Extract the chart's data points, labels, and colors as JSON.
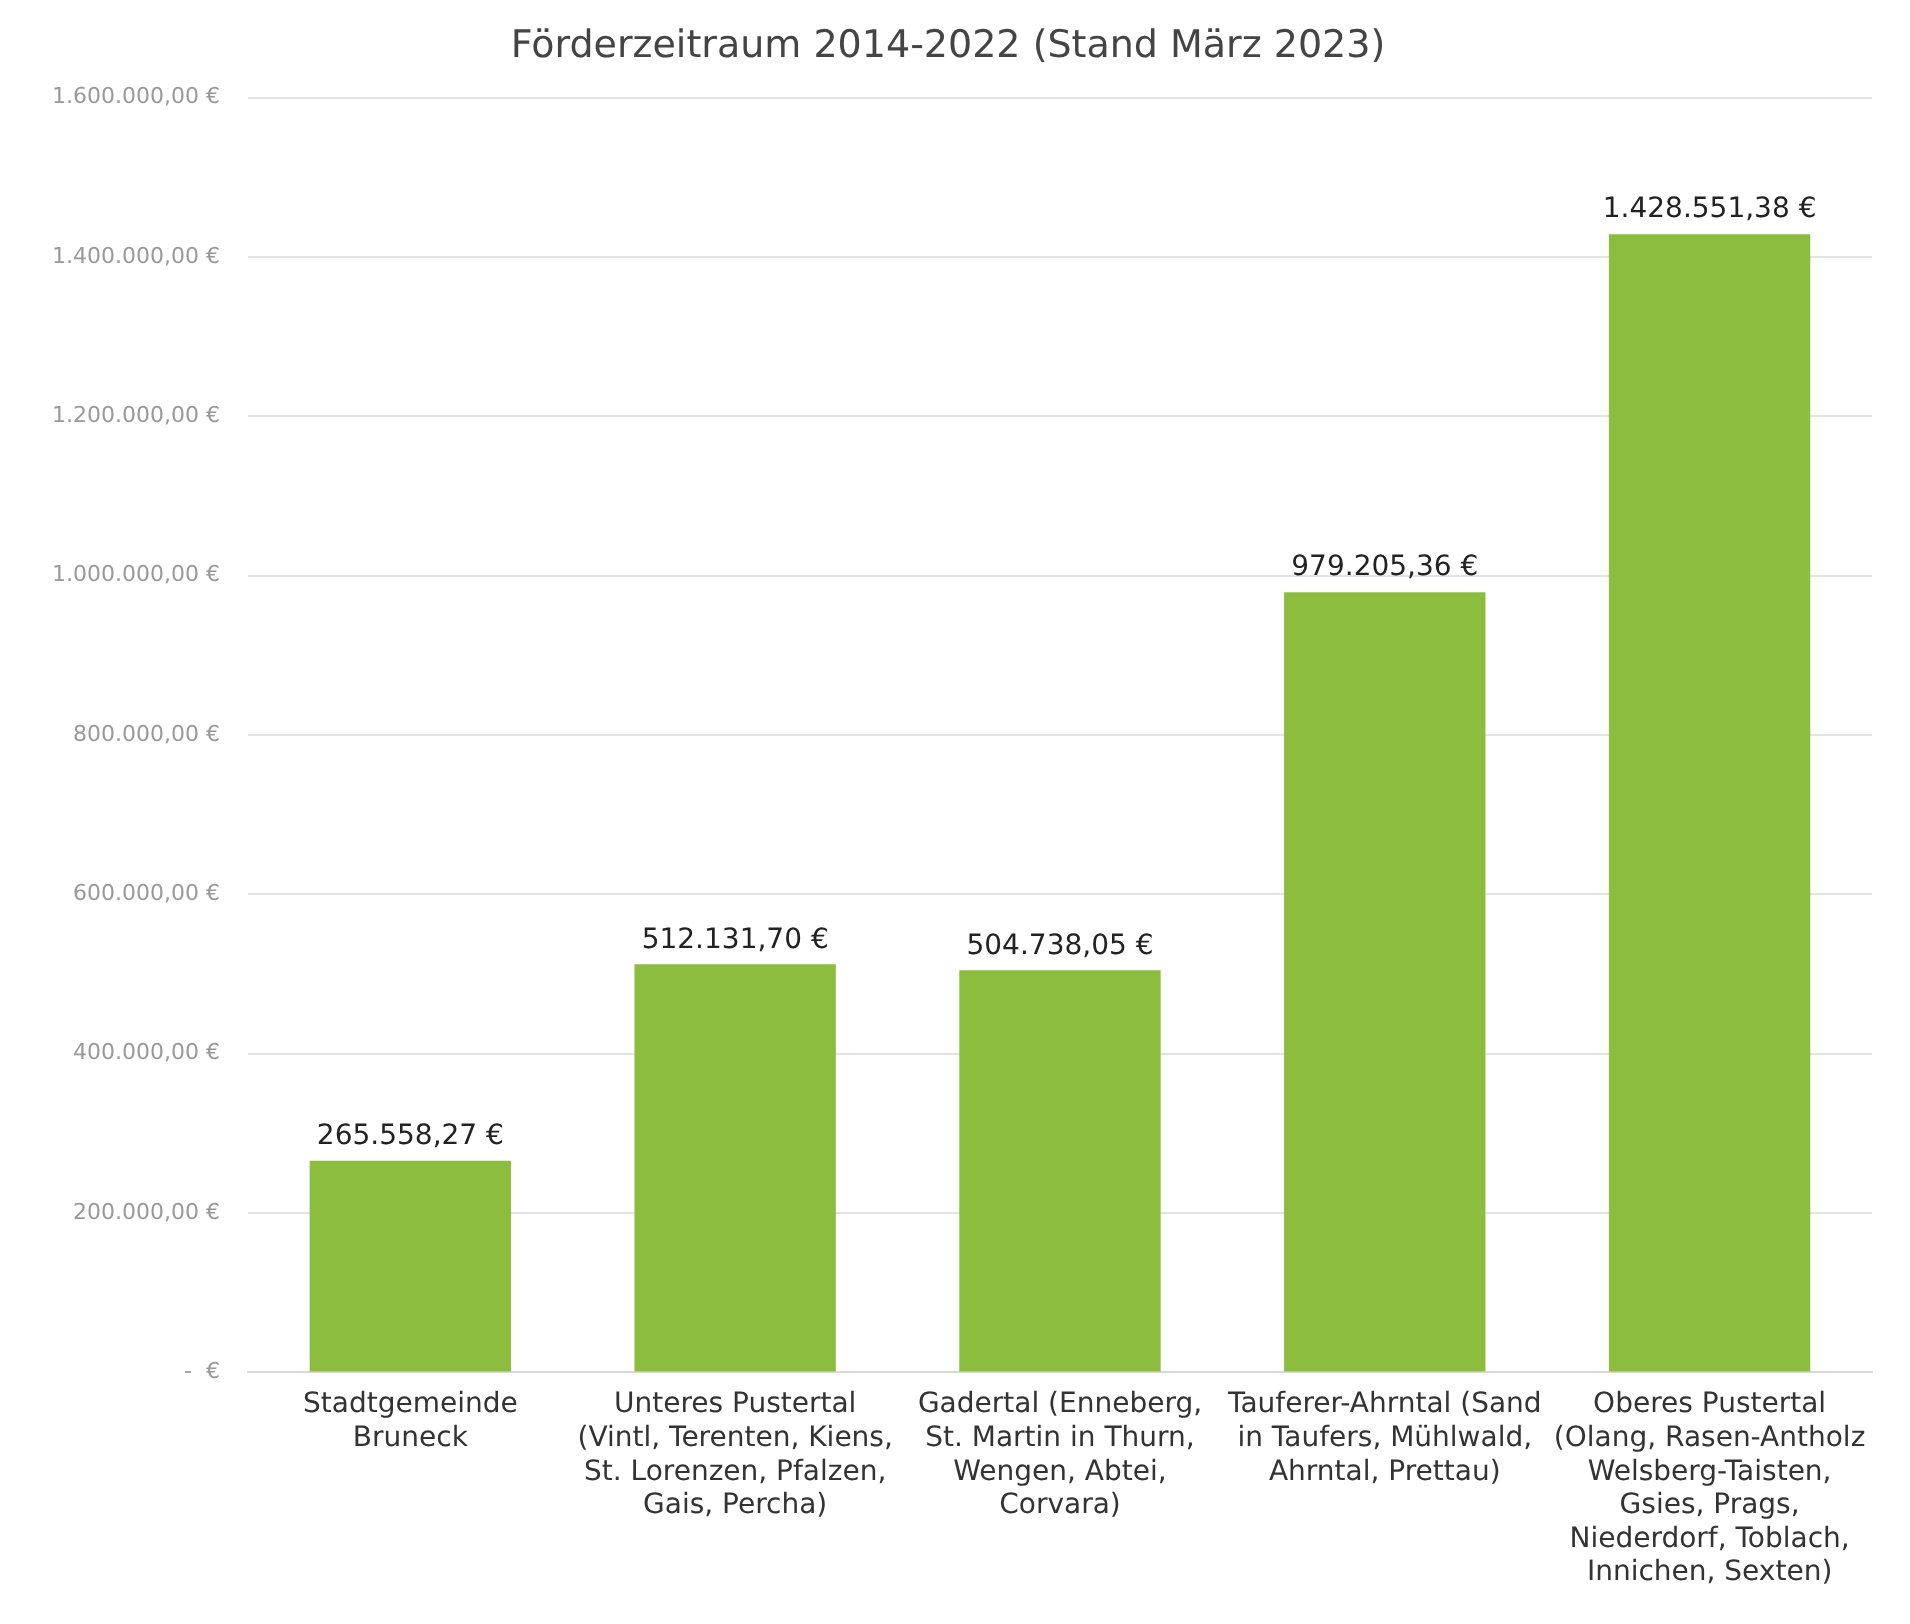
{
  "chart_data": {
    "type": "bar",
    "title": "Förderzeitraum 2014-2022 (Stand März 2023)",
    "categories": [
      "Stadtgemeinde Bruneck",
      "Unteres Pustertal (Vintl, Terenten, Kiens, St. Lorenzen, Pfalzen, Gais, Percha)",
      "Gadertal (Enneberg, St. Martin in Thurn, Wengen, Abtei, Corvara)",
      "Tauferer-Ahrntal (Sand in Taufers, Mühlwald, Ahrntal, Prettau)",
      "Oberes Pustertal (Olang, Rasen-Antholz Welsberg-Taisten, Gsies, Prags, Niederdorf, Toblach, Innichen, Sexten)"
    ],
    "values": [
      265558.27,
      512131.7,
      504738.05,
      979205.36,
      1428551.38
    ],
    "value_labels": [
      "265.558,27 €",
      "512.131,70 €",
      "504.738,05 €",
      "979.205,36 €",
      "1.428.551,38 €"
    ],
    "color": "#8cbd3f",
    "ylim": [
      0,
      1600000
    ],
    "yticks": [
      {
        "value": 0,
        "label": "-  €"
      },
      {
        "value": 200000,
        "label": "200.000,00 €"
      },
      {
        "value": 400000,
        "label": "400.000,00 €"
      },
      {
        "value": 600000,
        "label": "600.000,00 €"
      },
      {
        "value": 800000,
        "label": "800.000,00 €"
      },
      {
        "value": 1000000,
        "label": "1.000.000,00 €"
      },
      {
        "value": 1200000,
        "label": "1.200.000,00 €"
      },
      {
        "value": 1400000,
        "label": "1.400.000,00 €"
      },
      {
        "value": 1600000,
        "label": "1.600.000,00 €"
      }
    ],
    "grid": "y"
  }
}
